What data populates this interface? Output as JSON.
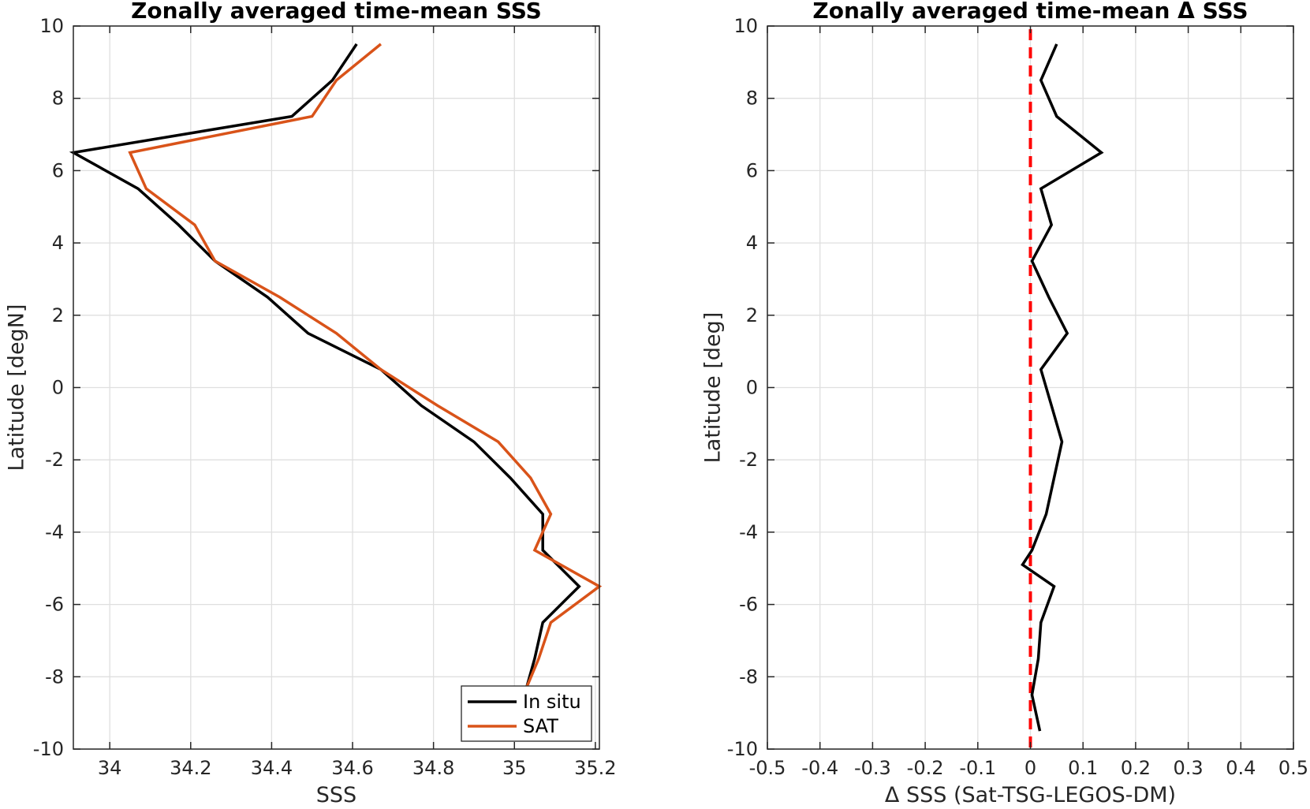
{
  "chart_data": [
    {
      "type": "line",
      "title": "Zonally averaged time-mean SSS",
      "xlabel": "SSS",
      "ylabel": "Latitude [degN]",
      "xlim": [
        33.91,
        35.21
      ],
      "ylim": [
        -10,
        10
      ],
      "xticks": [
        34,
        34.2,
        34.4,
        34.6,
        34.8,
        35,
        35.2
      ],
      "xtick_labels": [
        "34",
        "34.2",
        "34.4",
        "34.6",
        "34.8",
        "35",
        "35.2"
      ],
      "yticks": [
        -10,
        -8,
        -6,
        -4,
        -2,
        0,
        2,
        4,
        6,
        8,
        10
      ],
      "ytick_labels": [
        "-10",
        "-8",
        "-6",
        "-4",
        "-2",
        "0",
        "2",
        "4",
        "6",
        "8",
        "10"
      ],
      "grid": true,
      "legend": {
        "placement": "bottom-right",
        "entries": [
          "In situ",
          "SAT"
        ]
      },
      "series": [
        {
          "name": "In situ",
          "color": "#000000",
          "points": [
            [
              34.61,
              9.5
            ],
            [
              34.55,
              8.5
            ],
            [
              34.45,
              7.5
            ],
            [
              33.91,
              6.5
            ],
            [
              34.07,
              5.5
            ],
            [
              34.17,
              4.5
            ],
            [
              34.26,
              3.5
            ],
            [
              34.39,
              2.5
            ],
            [
              34.49,
              1.5
            ],
            [
              34.67,
              0.5
            ],
            [
              34.77,
              -0.5
            ],
            [
              34.9,
              -1.5
            ],
            [
              34.99,
              -2.5
            ],
            [
              35.07,
              -3.5
            ],
            [
              35.07,
              -4.5
            ],
            [
              35.16,
              -5.5
            ],
            [
              35.07,
              -6.5
            ],
            [
              35.05,
              -7.5
            ],
            [
              35.03,
              -8.3
            ]
          ]
        },
        {
          "name": "SAT",
          "color": "#D95319",
          "points": [
            [
              34.67,
              9.5
            ],
            [
              34.56,
              8.5
            ],
            [
              34.5,
              7.5
            ],
            [
              34.05,
              6.5
            ],
            [
              34.09,
              5.5
            ],
            [
              34.21,
              4.5
            ],
            [
              34.26,
              3.5
            ],
            [
              34.42,
              2.5
            ],
            [
              34.56,
              1.5
            ],
            [
              34.67,
              0.5
            ],
            [
              34.81,
              -0.5
            ],
            [
              34.96,
              -1.5
            ],
            [
              35.04,
              -2.5
            ],
            [
              35.09,
              -3.5
            ],
            [
              35.05,
              -4.5
            ],
            [
              35.21,
              -5.5
            ],
            [
              35.09,
              -6.5
            ],
            [
              35.06,
              -7.5
            ],
            [
              35.03,
              -8.3
            ]
          ]
        }
      ]
    },
    {
      "type": "line",
      "title": "Zonally averaged time-mean Δ SSS",
      "xlabel": "Δ SSS (Sat-TSG-LEGOS-DM)",
      "ylabel": "Latitude [deg]",
      "xlim": [
        -0.5,
        0.5
      ],
      "ylim": [
        -10,
        10
      ],
      "xticks": [
        -0.5,
        -0.4,
        -0.3,
        -0.2,
        -0.1,
        0,
        0.1,
        0.2,
        0.3,
        0.4,
        0.5
      ],
      "xtick_labels": [
        "-0.5",
        "-0.4",
        "-0.3",
        "-0.2",
        "-0.1",
        "0",
        "0.1",
        "0.2",
        "0.3",
        "0.4",
        "0.5"
      ],
      "yticks": [
        -10,
        -8,
        -6,
        -4,
        -2,
        0,
        2,
        4,
        6,
        8,
        10
      ],
      "ytick_labels": [
        "-10",
        "-8",
        "-6",
        "-4",
        "-2",
        "0",
        "2",
        "4",
        "6",
        "8",
        "10"
      ],
      "grid": true,
      "reference_line": {
        "x": 0,
        "color": "#FF0000",
        "style": "dashed"
      },
      "series": [
        {
          "color": "#000000",
          "points": [
            [
              0.05,
              9.5
            ],
            [
              0.02,
              8.5
            ],
            [
              0.05,
              7.5
            ],
            [
              0.135,
              6.5
            ],
            [
              0.02,
              5.5
            ],
            [
              0.04,
              4.5
            ],
            [
              0.003,
              3.5
            ],
            [
              0.035,
              2.5
            ],
            [
              0.07,
              1.5
            ],
            [
              0.02,
              0.5
            ],
            [
              0.04,
              -0.5
            ],
            [
              0.06,
              -1.5
            ],
            [
              0.045,
              -2.5
            ],
            [
              0.03,
              -3.5
            ],
            [
              0.003,
              -4.5
            ],
            [
              -0.015,
              -4.9
            ],
            [
              0.045,
              -5.5
            ],
            [
              0.02,
              -6.5
            ],
            [
              0.015,
              -7.5
            ],
            [
              0.003,
              -8.5
            ],
            [
              0.018,
              -9.5
            ]
          ]
        }
      ]
    }
  ]
}
